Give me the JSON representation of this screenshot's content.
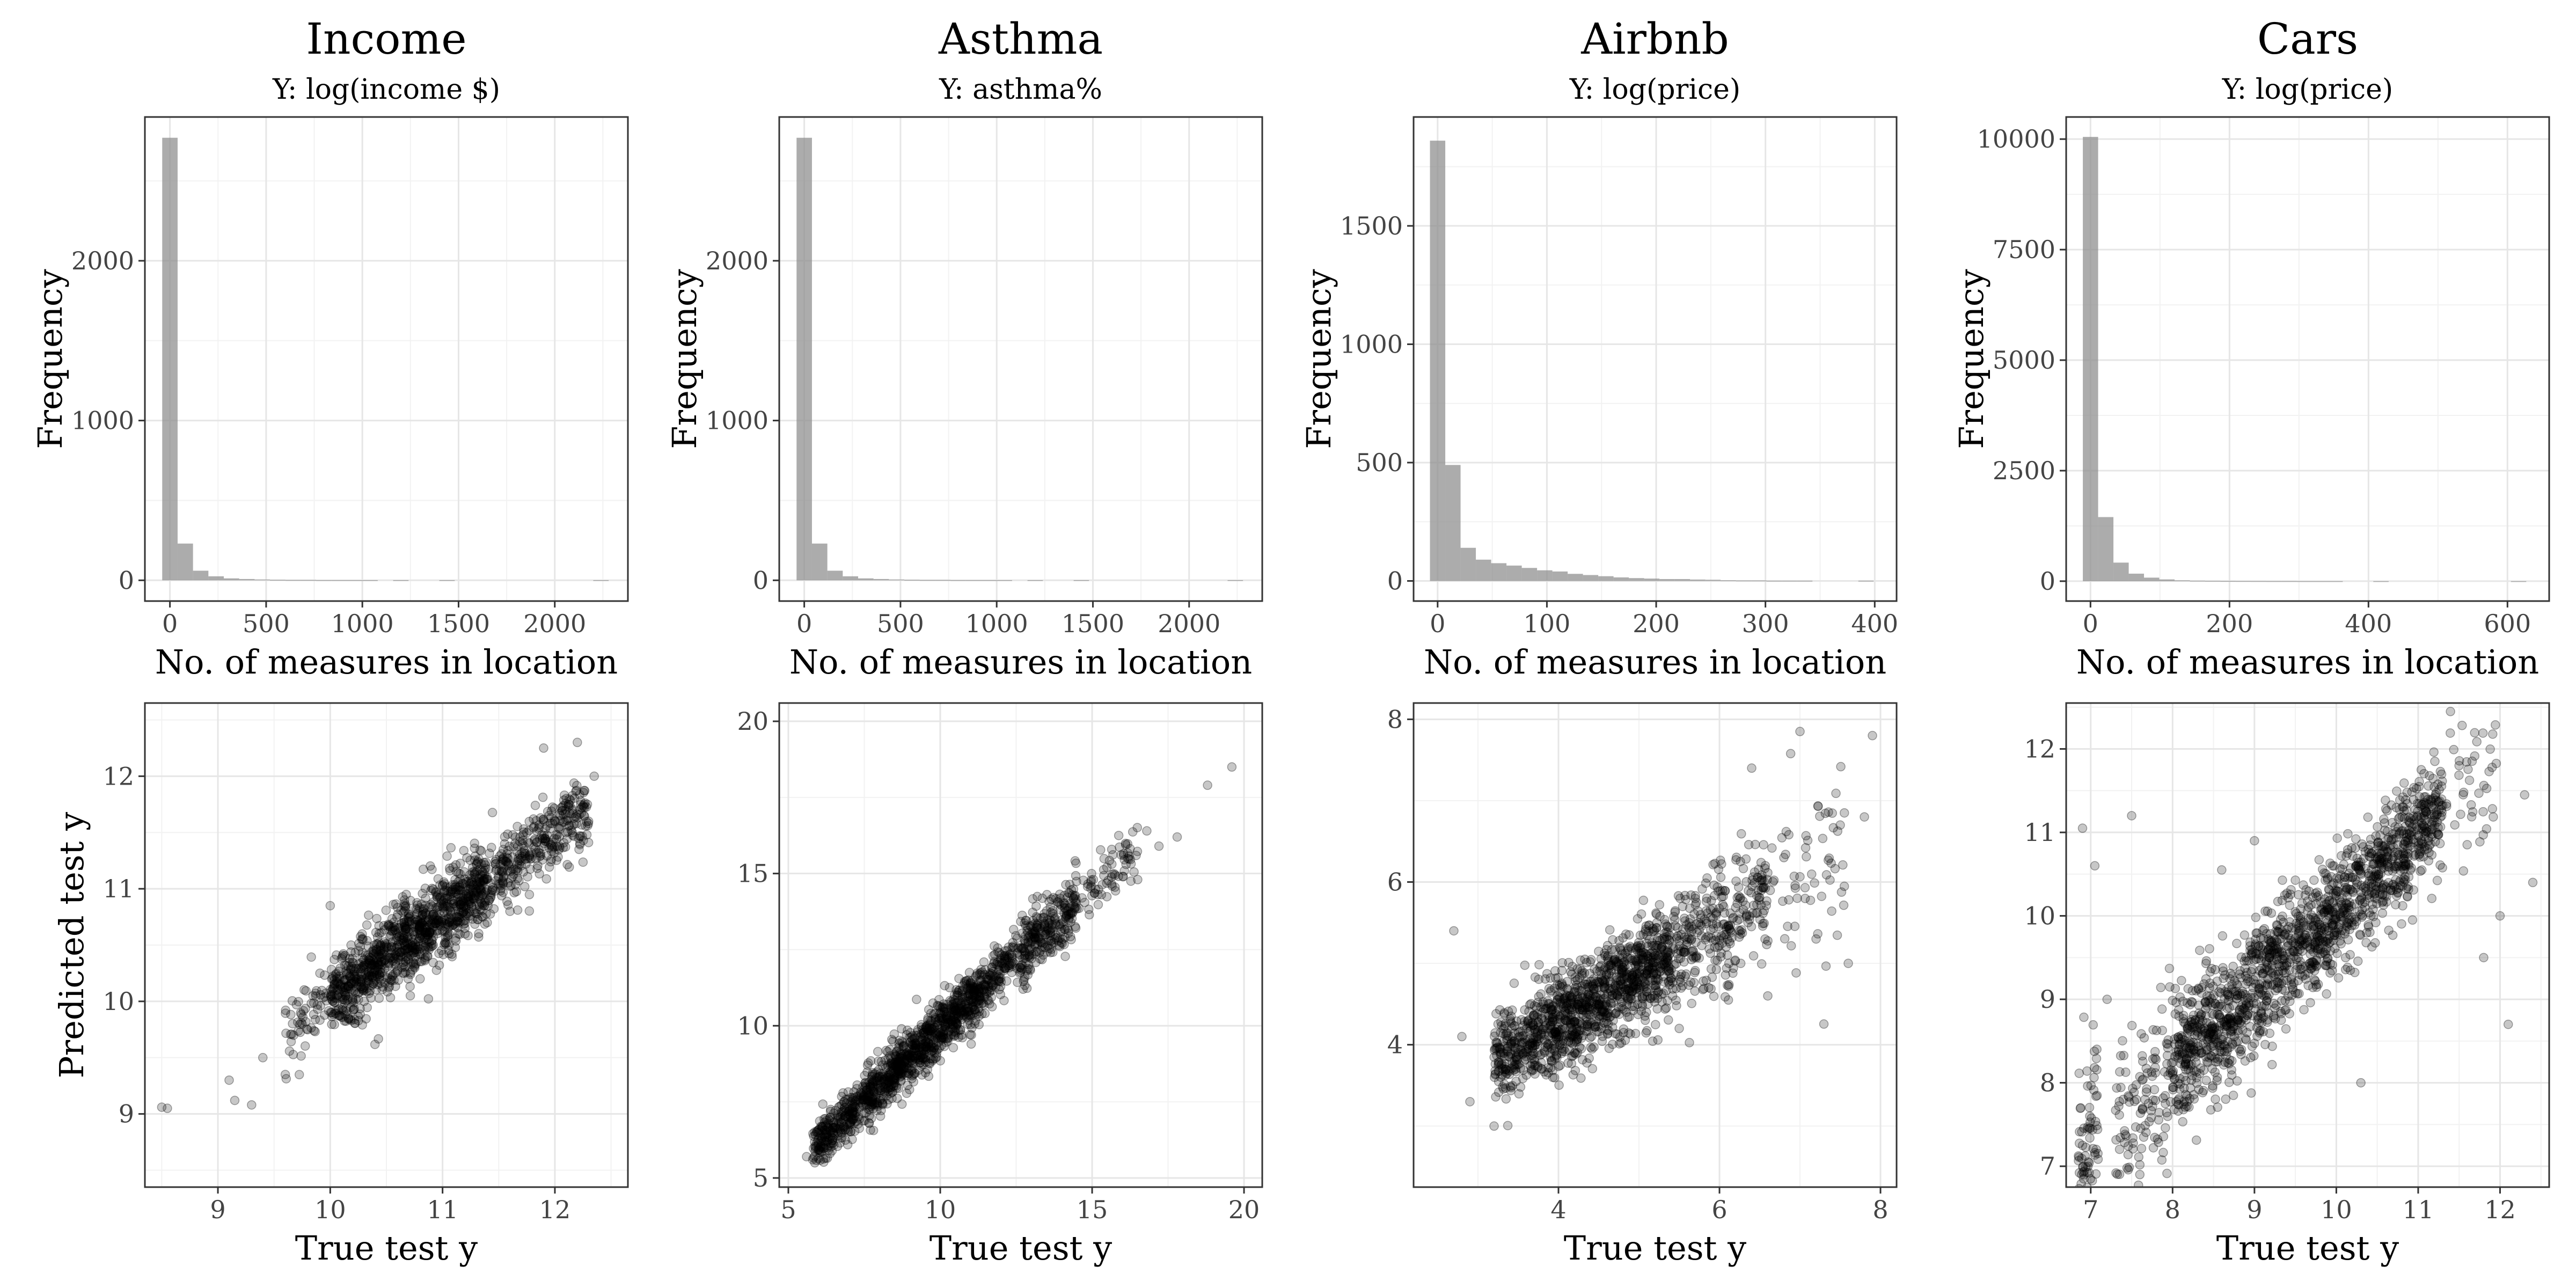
{
  "chart_data": [
    {
      "type": "bar",
      "title": "Income",
      "subtitle": "Y: log(income $)",
      "xlabel": "No. of measures in location",
      "ylabel": "Frequency",
      "xlim": [
        -130,
        2380
      ],
      "ylim": [
        -130,
        2900
      ],
      "xticks": [
        0,
        500,
        1000,
        1500,
        2000
      ],
      "yticks": [
        0,
        1000,
        2000
      ],
      "bin_width": 80,
      "bins": [
        0,
        80,
        160,
        240,
        320,
        400,
        480,
        560,
        640,
        720,
        800,
        880,
        960,
        1040,
        1120,
        1200,
        1280,
        1360,
        1440,
        1520,
        1600,
        1680,
        1760,
        1840,
        1920,
        2000,
        2080,
        2160,
        2240
      ],
      "values": [
        2770,
        230,
        60,
        25,
        12,
        8,
        5,
        3,
        2,
        2,
        1,
        1,
        1,
        1,
        0,
        1,
        0,
        0,
        1,
        0,
        0,
        0,
        0,
        0,
        0,
        0,
        0,
        0,
        1
      ]
    },
    {
      "type": "bar",
      "title": "Asthma",
      "subtitle": "Y: asthma%",
      "xlabel": "No. of measures in location",
      "ylabel": "Frequency",
      "xlim": [
        -130,
        2380
      ],
      "ylim": [
        -130,
        2900
      ],
      "xticks": [
        0,
        500,
        1000,
        1500,
        2000
      ],
      "yticks": [
        0,
        1000,
        2000
      ],
      "bin_width": 80,
      "bins": [
        0,
        80,
        160,
        240,
        320,
        400,
        480,
        560,
        640,
        720,
        800,
        880,
        960,
        1040,
        1120,
        1200,
        1280,
        1360,
        1440,
        1520,
        1600,
        1680,
        1760,
        1840,
        1920,
        2000,
        2080,
        2160,
        2240
      ],
      "values": [
        2770,
        230,
        60,
        25,
        12,
        8,
        5,
        3,
        2,
        2,
        1,
        1,
        1,
        1,
        0,
        1,
        0,
        0,
        1,
        0,
        0,
        0,
        0,
        0,
        0,
        0,
        0,
        0,
        1
      ]
    },
    {
      "type": "bar",
      "title": "Airbnb",
      "subtitle": "Y: log(price)",
      "xlabel": "No. of measures in location",
      "ylabel": "Frequency",
      "xlim": [
        -22,
        420
      ],
      "ylim": [
        -85,
        1960
      ],
      "xticks": [
        0,
        100,
        200,
        300,
        400
      ],
      "yticks": [
        0,
        500,
        1000,
        1500
      ],
      "bin_width": 14,
      "bins": [
        0,
        14,
        28,
        42,
        56,
        70,
        84,
        98,
        112,
        126,
        140,
        154,
        168,
        182,
        196,
        210,
        224,
        238,
        252,
        266,
        280,
        294,
        308,
        322,
        336,
        350,
        364,
        378,
        392
      ],
      "values": [
        1860,
        490,
        140,
        90,
        75,
        65,
        55,
        45,
        40,
        30,
        25,
        20,
        15,
        12,
        10,
        8,
        8,
        6,
        5,
        3,
        2,
        2,
        1,
        1,
        1,
        0,
        0,
        0,
        1
      ]
    },
    {
      "type": "bar",
      "title": "Cars",
      "subtitle": "Y: log(price)",
      "xlabel": "No. of measures in location",
      "ylabel": "Frequency",
      "xlim": [
        -35,
        660
      ],
      "ylim": [
        -450,
        10500
      ],
      "xticks": [
        0,
        200,
        400,
        600
      ],
      "yticks": [
        0,
        2500,
        5000,
        7500,
        10000
      ],
      "bin_width": 22,
      "bins": [
        0,
        22,
        44,
        66,
        88,
        110,
        132,
        154,
        176,
        198,
        220,
        242,
        264,
        286,
        308,
        330,
        352,
        374,
        396,
        418,
        440,
        462,
        484,
        506,
        528,
        550,
        572,
        594,
        616
      ],
      "values": [
        10050,
        1450,
        420,
        170,
        80,
        40,
        20,
        12,
        8,
        5,
        4,
        3,
        2,
        2,
        1,
        1,
        1,
        0,
        0,
        1,
        0,
        0,
        0,
        0,
        0,
        0,
        0,
        0,
        1
      ]
    },
    {
      "type": "scatter",
      "xlabel": "True test y",
      "ylabel": "Predicted test y",
      "xlim": [
        8.35,
        12.65
      ],
      "ylim": [
        8.35,
        12.65
      ],
      "xticks": [
        9,
        10,
        11,
        12
      ],
      "yticks": [
        9,
        10,
        11,
        12
      ],
      "points": [
        [
          8.5,
          9.06
        ],
        [
          8.55,
          9.05
        ],
        [
          9.1,
          9.3
        ],
        [
          9.15,
          9.12
        ],
        [
          9.3,
          9.08
        ],
        [
          9.4,
          9.5
        ],
        [
          9.6,
          9.35
        ],
        [
          12.3,
          11.6
        ],
        [
          12.35,
          12.0
        ],
        [
          12.2,
          12.3
        ],
        [
          11.6,
          10.8
        ],
        [
          11.9,
          12.25
        ],
        [
          10.8,
          10.2
        ],
        [
          11.2,
          10.6
        ],
        [
          10.0,
          10.85
        ]
      ],
      "cloud": [
        {
          "x": [
            9.6,
            10.0
          ],
          "slope": 0.73,
          "intercept": 2.74,
          "sd": 0.16,
          "n": 60
        },
        {
          "x": [
            10.0,
            10.6
          ],
          "slope": 0.73,
          "intercept": 2.74,
          "sd": 0.17,
          "n": 420
        },
        {
          "x": [
            10.6,
            11.4
          ],
          "slope": 0.73,
          "intercept": 2.74,
          "sd": 0.17,
          "n": 620
        },
        {
          "x": [
            11.4,
            12.3
          ],
          "slope": 0.73,
          "intercept": 2.74,
          "sd": 0.17,
          "n": 320
        }
      ]
    },
    {
      "type": "scatter",
      "xlabel": "True test y",
      "ylabel": "",
      "xlim": [
        4.7,
        20.6
      ],
      "ylim": [
        4.7,
        20.6
      ],
      "xticks": [
        5,
        10,
        15,
        20
      ],
      "yticks": [
        5,
        10,
        15,
        20
      ],
      "points": [
        [
          19.6,
          18.5
        ],
        [
          18.8,
          17.9
        ],
        [
          17.8,
          16.2
        ],
        [
          17.2,
          15.9
        ],
        [
          16.8,
          16.4
        ],
        [
          5.6,
          5.7
        ],
        [
          5.8,
          5.6
        ],
        [
          16.5,
          14.8
        ]
      ],
      "cloud": [
        {
          "x": [
            5.8,
            7.5
          ],
          "slope": 0.93,
          "intercept": 0.6,
          "sd": 0.35,
          "n": 260
        },
        {
          "x": [
            7.5,
            11.5
          ],
          "slope": 0.93,
          "intercept": 0.6,
          "sd": 0.45,
          "n": 820
        },
        {
          "x": [
            11.5,
            14.5
          ],
          "slope": 0.93,
          "intercept": 0.6,
          "sd": 0.5,
          "n": 380
        },
        {
          "x": [
            14.5,
            16.5
          ],
          "slope": 0.93,
          "intercept": 0.6,
          "sd": 0.5,
          "n": 70
        }
      ]
    },
    {
      "type": "scatter",
      "xlabel": "True test y",
      "ylabel": "",
      "xlim": [
        2.2,
        8.2
      ],
      "ylim": [
        2.25,
        8.2
      ],
      "xticks": [
        4,
        6,
        8
      ],
      "yticks": [
        4,
        6,
        8
      ],
      "points": [
        [
          7.0,
          7.85
        ],
        [
          7.9,
          7.8
        ],
        [
          2.8,
          4.1
        ],
        [
          2.7,
          5.4
        ],
        [
          7.8,
          6.8
        ],
        [
          7.6,
          5.0
        ],
        [
          7.5,
          6.7
        ],
        [
          6.6,
          4.6
        ],
        [
          6.4,
          7.4
        ],
        [
          5.5,
          4.2
        ],
        [
          2.9,
          3.3
        ],
        [
          3.2,
          3.0
        ],
        [
          6.8,
          6.3
        ],
        [
          7.2,
          5.3
        ]
      ],
      "cloud": [
        {
          "x": [
            3.2,
            3.8
          ],
          "slope": 0.6,
          "intercept": 1.85,
          "sd": 0.27,
          "n": 260
        },
        {
          "x": [
            3.8,
            5.4
          ],
          "slope": 0.6,
          "intercept": 1.85,
          "sd": 0.3,
          "n": 900
        },
        {
          "x": [
            5.4,
            6.6
          ],
          "slope": 0.6,
          "intercept": 1.85,
          "sd": 0.35,
          "n": 300
        },
        {
          "x": [
            6.6,
            7.6
          ],
          "slope": 0.6,
          "intercept": 1.85,
          "sd": 0.6,
          "n": 60
        }
      ]
    },
    {
      "type": "scatter",
      "xlabel": "True test y",
      "ylabel": "",
      "xlim": [
        6.7,
        12.6
      ],
      "ylim": [
        6.75,
        12.55
      ],
      "xticks": [
        7,
        8,
        9,
        10,
        11,
        12
      ],
      "yticks": [
        7,
        8,
        9,
        10,
        11,
        12
      ],
      "points": [
        [
          6.9,
          11.05
        ],
        [
          7.05,
          10.6
        ],
        [
          7.5,
          11.2
        ],
        [
          7.2,
          9.0
        ],
        [
          12.4,
          10.4
        ],
        [
          12.3,
          11.45
        ],
        [
          11.5,
          11.8
        ],
        [
          12.0,
          10.0
        ],
        [
          12.1,
          8.7
        ],
        [
          8.6,
          10.55
        ],
        [
          9.0,
          10.9
        ],
        [
          7.6,
          6.9
        ],
        [
          10.3,
          8.0
        ],
        [
          11.8,
          9.5
        ]
      ],
      "cloud": [
        {
          "x": [
            6.85,
            7.1
          ],
          "slope": 0.95,
          "intercept": 0.6,
          "sd": 0.7,
          "n": 80
        },
        {
          "x": [
            7.3,
            8.0
          ],
          "slope": 0.95,
          "intercept": 0.6,
          "sd": 0.55,
          "n": 120
        },
        {
          "x": [
            8.0,
            9.5
          ],
          "slope": 0.95,
          "intercept": 0.55,
          "sd": 0.38,
          "n": 700
        },
        {
          "x": [
            9.5,
            11.3
          ],
          "slope": 0.95,
          "intercept": 0.55,
          "sd": 0.32,
          "n": 800
        },
        {
          "x": [
            11.3,
            12.0
          ],
          "slope": 0.95,
          "intercept": 0.55,
          "sd": 0.45,
          "n": 40
        }
      ]
    }
  ]
}
